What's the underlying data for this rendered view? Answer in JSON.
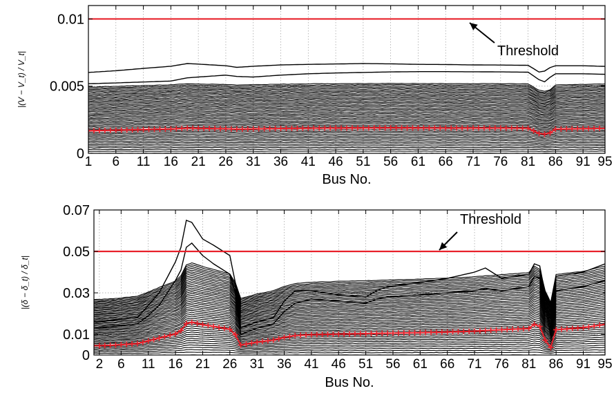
{
  "chart_data": [
    {
      "type": "line",
      "xlabel": "Bus No.",
      "ylabel": "|(V − V_t) / V_t|",
      "xlim": [
        1,
        95
      ],
      "ylim": [
        0,
        0.011
      ],
      "grid": true,
      "x_tick_labels": [
        "1",
        "6",
        "11",
        "16",
        "21",
        "26",
        "31",
        "36",
        "41",
        "46",
        "51",
        "56",
        "61",
        "66",
        "71",
        "76",
        "81",
        "86",
        "91",
        "95"
      ],
      "y_tick_labels": [
        "0",
        "0.005",
        "0.01"
      ],
      "y_tick_values": [
        0,
        0.005,
        0.01
      ],
      "threshold": {
        "label": "Threshold",
        "value": 0.01,
        "color": "#e8202a"
      },
      "series_color": "#000000",
      "mean_marker_color": "#e8202a",
      "upper_curves": [
        {
          "x": [
            1,
            6,
            11,
            16,
            19,
            21,
            26,
            28,
            31,
            36,
            41,
            46,
            51,
            56,
            61,
            66,
            71,
            76,
            81,
            83,
            84,
            85,
            86,
            91,
            95
          ],
          "y": [
            0.00602,
            0.00615,
            0.00632,
            0.00648,
            0.00668,
            0.00664,
            0.00652,
            0.0064,
            0.00648,
            0.00658,
            0.00662,
            0.00665,
            0.00668,
            0.00666,
            0.00662,
            0.00661,
            0.00658,
            0.00657,
            0.00655,
            0.00605,
            0.00612,
            0.00638,
            0.00652,
            0.00652,
            0.00647
          ]
        },
        {
          "x": [
            1,
            6,
            11,
            16,
            19,
            21,
            26,
            28,
            31,
            36,
            41,
            46,
            51,
            56,
            61,
            66,
            71,
            76,
            81,
            83,
            84,
            85,
            86,
            91,
            95
          ],
          "y": [
            0.00518,
            0.00524,
            0.00531,
            0.00538,
            0.00562,
            0.00568,
            0.00582,
            0.00572,
            0.00568,
            0.00582,
            0.00592,
            0.00598,
            0.00602,
            0.00606,
            0.00608,
            0.00608,
            0.00607,
            0.00606,
            0.00604,
            0.00548,
            0.00532,
            0.00566,
            0.00592,
            0.00592,
            0.00588
          ]
        }
      ],
      "band_range": [
        0.0,
        0.0052
      ],
      "mean_curve": {
        "x": [
          1,
          6,
          11,
          16,
          19,
          21,
          26,
          28,
          31,
          36,
          41,
          46,
          51,
          56,
          61,
          66,
          71,
          76,
          81,
          83,
          84,
          85,
          86,
          91,
          95
        ],
        "y": [
          0.00168,
          0.00172,
          0.00177,
          0.00181,
          0.00188,
          0.00186,
          0.00183,
          0.0018,
          0.00182,
          0.00185,
          0.00187,
          0.00188,
          0.00189,
          0.0019,
          0.00189,
          0.00188,
          0.00188,
          0.00188,
          0.00187,
          0.00148,
          0.00142,
          0.00152,
          0.0018,
          0.00184,
          0.00186
        ]
      }
    },
    {
      "type": "line",
      "xlabel": "Bus No.",
      "ylabel": "|(δ − δ_t) / δ_t|",
      "xlim": [
        1,
        95
      ],
      "ylim": [
        0,
        0.07
      ],
      "grid": true,
      "x_tick_labels": [
        "2",
        "6",
        "11",
        "16",
        "21",
        "26",
        "31",
        "36",
        "41",
        "46",
        "51",
        "56",
        "61",
        "66",
        "71",
        "76",
        "81",
        "86",
        "91",
        "95"
      ],
      "y_tick_labels": [
        "0",
        "0.01",
        "0.03",
        "0.05",
        "0.07"
      ],
      "y_tick_values": [
        0,
        0.01,
        0.03,
        0.05,
        0.07
      ],
      "threshold": {
        "label": "Threshold",
        "value": 0.05,
        "color": "#e8202a"
      },
      "series_color": "#000000",
      "mean_marker_color": "#e8202a",
      "upper_curves": [
        {
          "x": [
            2,
            5,
            9,
            11,
            13,
            16,
            17,
            18,
            19,
            21,
            23,
            26,
            27,
            28,
            31,
            34,
            36,
            38,
            41,
            46,
            51,
            53,
            55,
            61,
            66,
            71,
            73,
            76,
            81,
            82,
            83,
            84,
            85,
            86,
            91,
            95
          ],
          "y": [
            0.016,
            0.017,
            0.018,
            0.024,
            0.03,
            0.045,
            0.052,
            0.065,
            0.064,
            0.056,
            0.053,
            0.048,
            0.035,
            0.013,
            0.016,
            0.018,
            0.026,
            0.031,
            0.031,
            0.029,
            0.028,
            0.031,
            0.033,
            0.035,
            0.037,
            0.04,
            0.042,
            0.037,
            0.039,
            0.044,
            0.043,
            0.029,
            0.012,
            0.038,
            0.04,
            0.044
          ]
        },
        {
          "x": [
            2,
            5,
            9,
            11,
            13,
            16,
            17,
            18,
            19,
            21,
            23,
            26,
            27,
            28,
            31,
            34,
            36,
            38,
            41,
            46,
            51,
            53,
            55,
            61,
            66,
            71,
            73,
            76,
            81,
            82,
            83,
            84,
            85,
            86,
            91,
            95
          ],
          "y": [
            0.013,
            0.014,
            0.015,
            0.019,
            0.024,
            0.036,
            0.041,
            0.052,
            0.054,
            0.048,
            0.044,
            0.039,
            0.03,
            0.01,
            0.013,
            0.015,
            0.021,
            0.025,
            0.027,
            0.026,
            0.025,
            0.027,
            0.028,
            0.029,
            0.03,
            0.031,
            0.032,
            0.031,
            0.033,
            0.038,
            0.037,
            0.024,
            0.009,
            0.031,
            0.033,
            0.036
          ]
        }
      ],
      "band_range": [
        0.0,
        0.036
      ],
      "mean_curve": {
        "x": [
          2,
          5,
          9,
          11,
          13,
          16,
          17,
          18,
          19,
          21,
          23,
          26,
          27,
          28,
          31,
          34,
          36,
          38,
          41,
          46,
          51,
          53,
          55,
          61,
          66,
          71,
          73,
          76,
          81,
          82,
          83,
          84,
          85,
          86,
          91,
          95
        ],
        "y": [
          0.0045,
          0.0048,
          0.0055,
          0.0068,
          0.0082,
          0.0102,
          0.0118,
          0.0152,
          0.0158,
          0.0147,
          0.0138,
          0.0124,
          0.0098,
          0.0048,
          0.0062,
          0.0072,
          0.0085,
          0.0094,
          0.0098,
          0.0101,
          0.0103,
          0.0104,
          0.0105,
          0.0108,
          0.0111,
          0.0115,
          0.0118,
          0.0122,
          0.0128,
          0.0148,
          0.0138,
          0.0072,
          0.0036,
          0.0122,
          0.0132,
          0.0148
        ]
      }
    }
  ]
}
